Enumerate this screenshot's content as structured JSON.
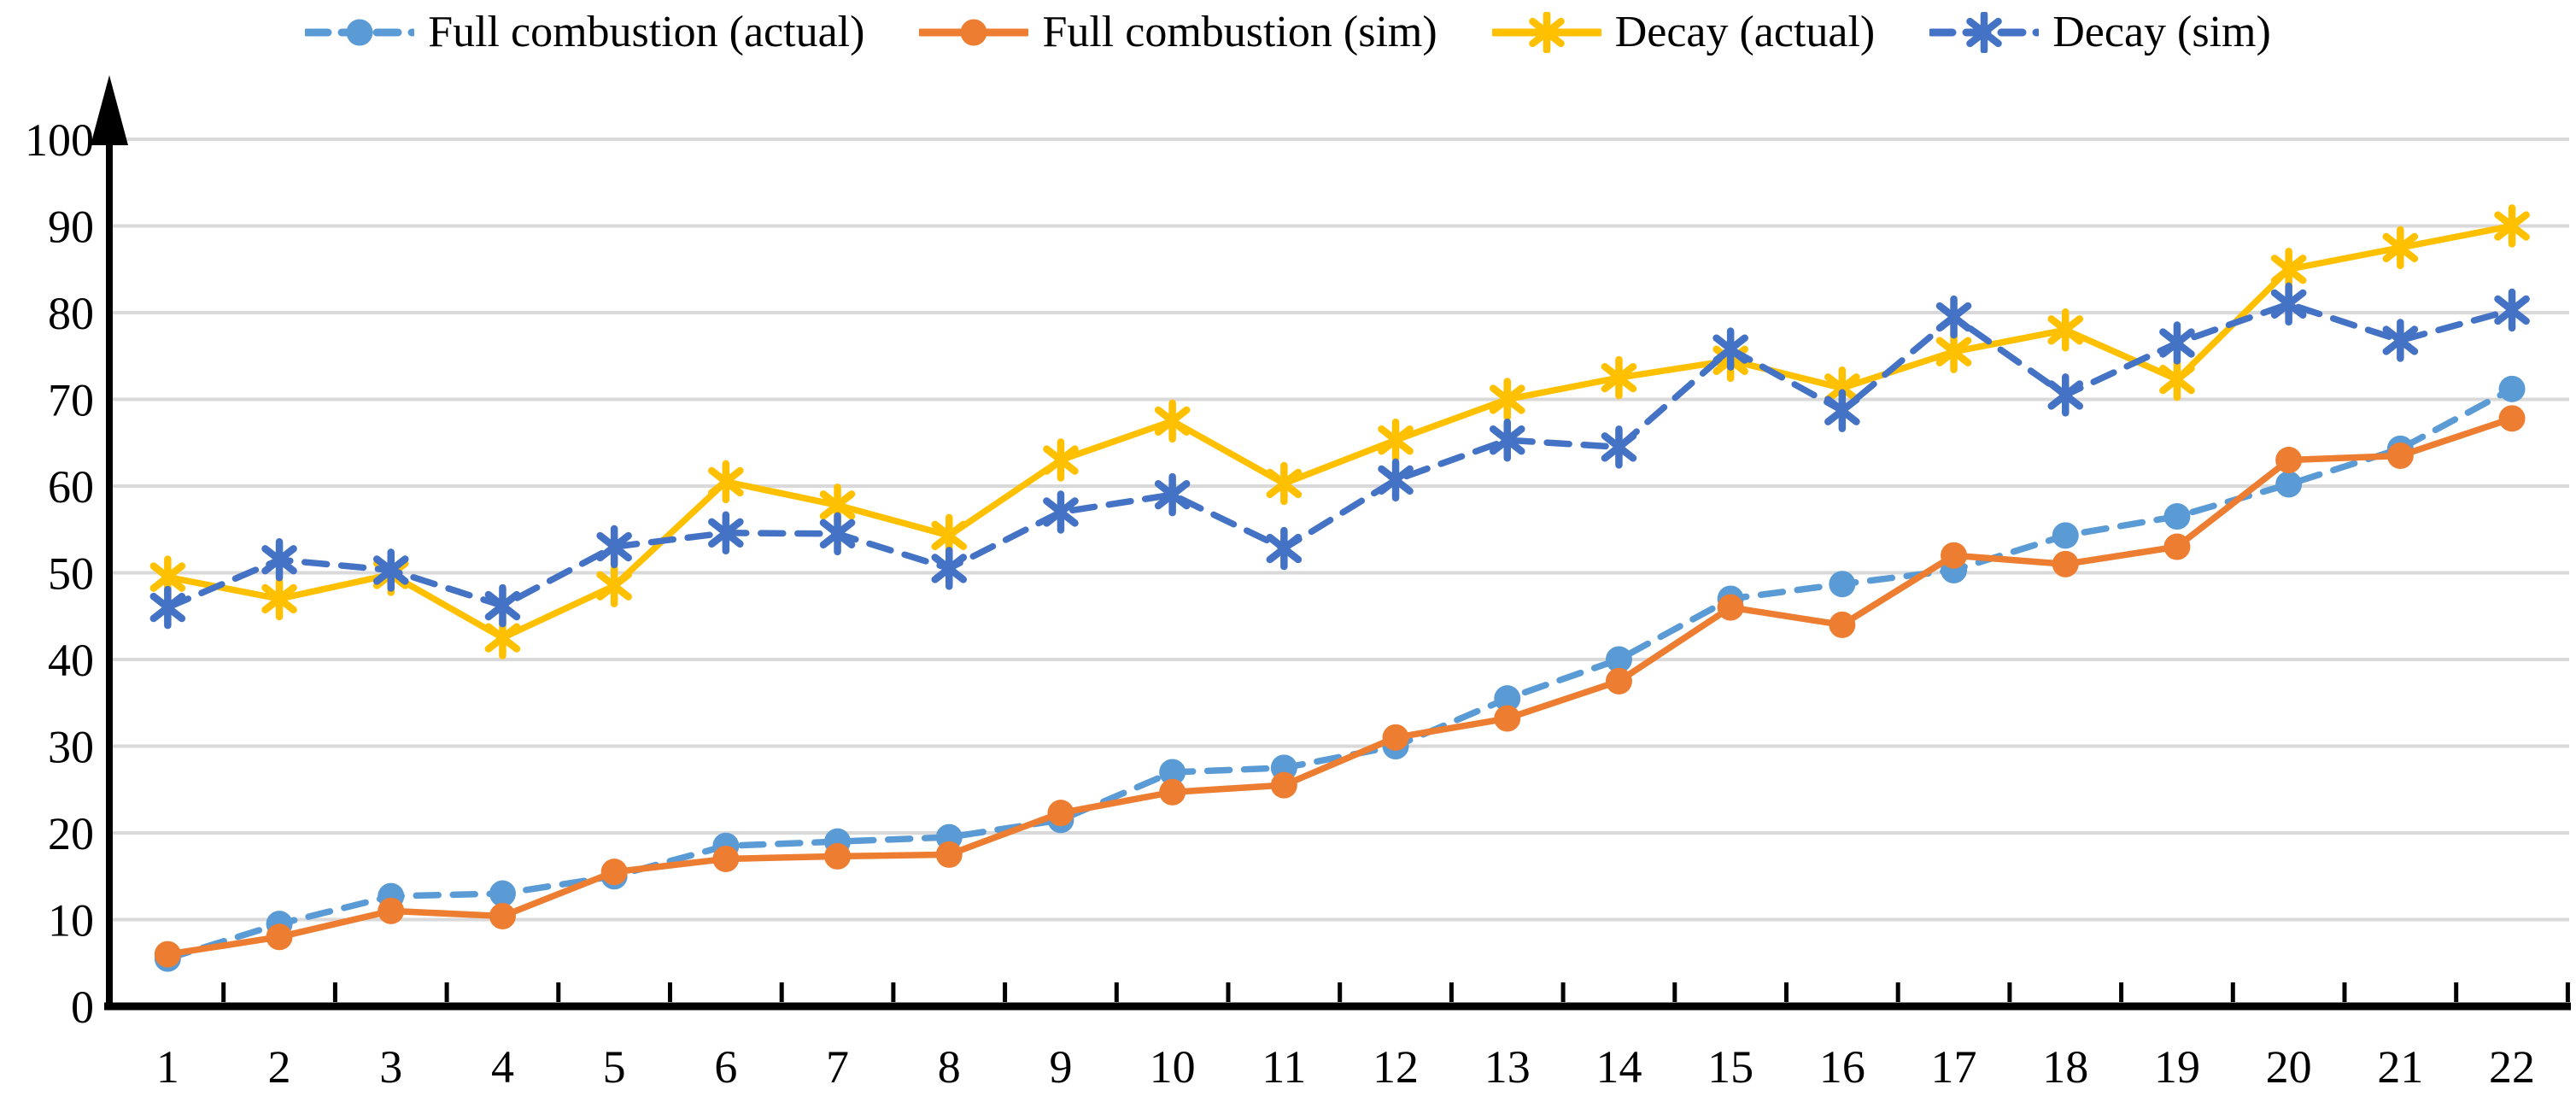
{
  "chart_data": {
    "type": "line",
    "title": "",
    "xlabel": "",
    "ylabel": "",
    "ylim": [
      0,
      100
    ],
    "y_ticks": [
      0,
      10,
      20,
      30,
      40,
      50,
      60,
      70,
      80,
      90,
      100
    ],
    "categories": [
      "1",
      "2",
      "3",
      "4",
      "5",
      "6",
      "7",
      "8",
      "9",
      "10",
      "11",
      "12",
      "13",
      "14",
      "15",
      "16",
      "17",
      "18",
      "19",
      "20",
      "21",
      "22"
    ],
    "grid": true,
    "legend_position": "top",
    "axis_color": "#000000",
    "gridline_color": "#D9D9D9",
    "text_color": "#000000",
    "series": [
      {
        "name": "Full combustion (actual)",
        "color": "#5B9BD5",
        "line_style": "dashed",
        "marker": "circle",
        "values": [
          5.5,
          9.5,
          12.7,
          13,
          15,
          18.5,
          19,
          19.5,
          21.5,
          27,
          27.5,
          30,
          35.5,
          40,
          47,
          48.7,
          50.3,
          54.3,
          56.5,
          60.2,
          64.3,
          71.2
        ]
      },
      {
        "name": "Full combustion (sim)",
        "color": "#ED7D31",
        "line_style": "solid",
        "marker": "circle",
        "values": [
          6,
          8,
          11,
          10.4,
          15.5,
          17,
          17.3,
          17.5,
          22.3,
          24.7,
          25.5,
          31,
          33.2,
          37.5,
          46,
          44,
          52,
          51,
          53,
          63,
          63.5,
          67.8
        ]
      },
      {
        "name": "Decay (actual)",
        "color": "#FFC000",
        "line_style": "solid",
        "marker": "asterisk",
        "values": [
          49.5,
          47,
          49.8,
          42.5,
          48.5,
          60.5,
          57.8,
          54.3,
          63,
          67.5,
          60.3,
          65.3,
          70,
          72.5,
          74.5,
          71.3,
          75.5,
          78,
          72.3,
          85,
          87.5,
          90
        ]
      },
      {
        "name": "Decay (sim)",
        "color": "#4472C4",
        "line_style": "dashed",
        "marker": "asterisk",
        "values": [
          46,
          51.5,
          50.3,
          46.2,
          53,
          54.6,
          54.5,
          50.5,
          57,
          59,
          52.8,
          60.7,
          65.3,
          64.5,
          75.8,
          68.7,
          79.5,
          70.5,
          76.5,
          81,
          76.8,
          80.3
        ]
      }
    ]
  }
}
